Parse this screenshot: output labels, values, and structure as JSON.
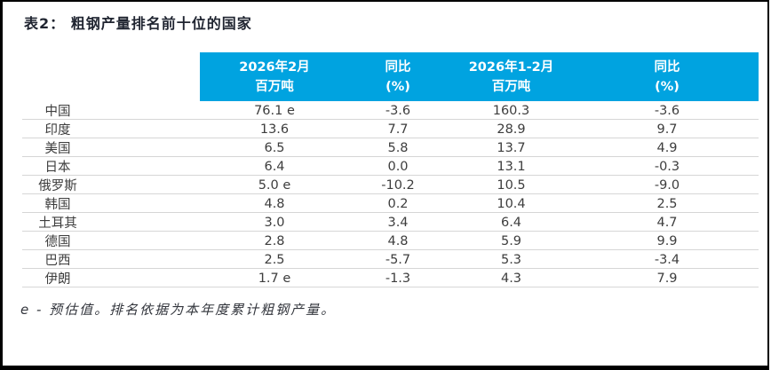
{
  "title": "表2： 粗钢产量排名前十位的国家",
  "colors": {
    "header_bg": "#00a3e0",
    "header_text": "#ffffff",
    "body_text": "#3d3d3d",
    "row_line": "#d6d6d6",
    "frame_border": "#000000"
  },
  "table": {
    "headers": {
      "feb_line1": "2026年2月",
      "feb_line2": "百万吨",
      "yoy1_line1": "同比",
      "yoy1_line2": "(%)",
      "janfeb_line1": "2026年1-2月",
      "janfeb_line2": "百万吨",
      "yoy2_line1": "同比",
      "yoy2_line2": "(%)"
    },
    "rows": [
      {
        "country": "中国",
        "feb": "76.1 e",
        "yoy1": "-3.6",
        "janfeb": "160.3",
        "yoy2": "-3.6"
      },
      {
        "country": "印度",
        "feb": "13.6",
        "yoy1": "7.7",
        "janfeb": "28.9",
        "yoy2": "9.7"
      },
      {
        "country": "美国",
        "feb": "6.5",
        "yoy1": "5.8",
        "janfeb": "13.7",
        "yoy2": "4.9"
      },
      {
        "country": "日本",
        "feb": "6.4",
        "yoy1": "0.0",
        "janfeb": "13.1",
        "yoy2": "-0.3"
      },
      {
        "country": "俄罗斯",
        "feb": "5.0 e",
        "yoy1": "-10.2",
        "janfeb": "10.5",
        "yoy2": "-9.0"
      },
      {
        "country": "韩国",
        "feb": "4.8",
        "yoy1": "0.2",
        "janfeb": "10.4",
        "yoy2": "2.5"
      },
      {
        "country": "土耳其",
        "feb": "3.0",
        "yoy1": "3.4",
        "janfeb": "6.4",
        "yoy2": "4.7"
      },
      {
        "country": "德国",
        "feb": "2.8",
        "yoy1": "4.8",
        "janfeb": "5.9",
        "yoy2": "9.9"
      },
      {
        "country": "巴西",
        "feb": "2.5",
        "yoy1": "-5.7",
        "janfeb": "5.3",
        "yoy2": "-3.4"
      },
      {
        "country": "伊朗",
        "feb": "1.7 e",
        "yoy1": "-1.3",
        "janfeb": "4.3",
        "yoy2": "7.9"
      }
    ]
  },
  "footnote": "e - 预估值。排名依据为本年度累计粗钢产量。"
}
